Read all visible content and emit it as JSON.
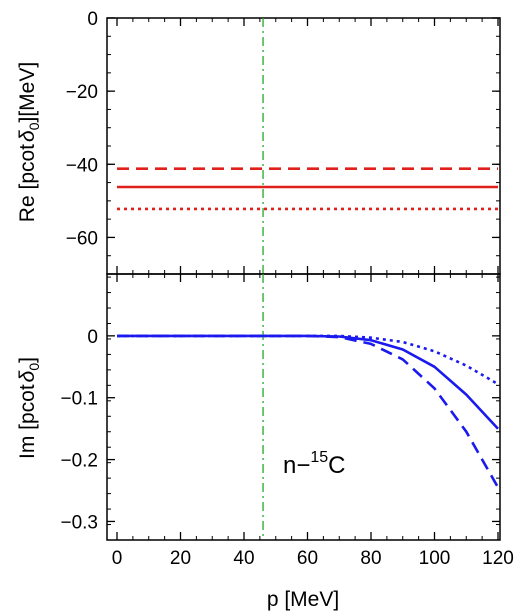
{
  "chart_data": [
    {
      "type": "line",
      "panel": "top",
      "ylabel_parts": [
        "Re [pcot",
        "δ",
        "0",
        "][MeV]"
      ],
      "xlim": [
        0,
        120
      ],
      "ylim": [
        -70,
        0
      ],
      "yticks": [
        0,
        -20,
        -40,
        -60
      ],
      "ytick_labels": [
        "0",
        "−20",
        "−40",
        "−60"
      ],
      "reference_line": {
        "x": 46,
        "color": "#22aa22",
        "style": "dash-dot"
      },
      "series": [
        {
          "style": "dashed",
          "color": "#e0201b",
          "x": [
            0,
            120
          ],
          "y": [
            -41.2,
            -41.2
          ]
        },
        {
          "style": "solid",
          "color": "#e0201b",
          "x": [
            0,
            120
          ],
          "y": [
            -46.2,
            -46.2
          ]
        },
        {
          "style": "dotted",
          "color": "#e0201b",
          "x": [
            0,
            120
          ],
          "y": [
            -52.2,
            -52.2
          ]
        }
      ]
    },
    {
      "type": "line",
      "panel": "bottom",
      "ylabel_parts": [
        "Im [pcot",
        "δ",
        "0",
        "]"
      ],
      "xlabel": "p [MeV]",
      "xlim": [
        0,
        120
      ],
      "ylim": [
        -0.33,
        0.1
      ],
      "xticks": [
        0,
        20,
        40,
        60,
        80,
        100,
        120
      ],
      "xtick_labels": [
        "0",
        "20",
        "40",
        "60",
        "80",
        "100",
        "120"
      ],
      "yticks": [
        0,
        -0.1,
        -0.2,
        -0.3
      ],
      "ytick_labels": [
        "0",
        "−0.1",
        "−0.2",
        "−0.3"
      ],
      "annotation_parts": [
        "n−",
        "15",
        "C"
      ],
      "reference_line": {
        "x": 46,
        "color": "#22aa22",
        "style": "dash-dot"
      },
      "series": [
        {
          "style": "dashed",
          "color": "#1a1aee",
          "x": [
            0,
            60,
            70,
            80,
            90,
            100,
            110,
            120
          ],
          "y": [
            0,
            0,
            -0.002,
            -0.013,
            -0.038,
            -0.085,
            -0.155,
            -0.245
          ]
        },
        {
          "style": "solid",
          "color": "#1a1aee",
          "x": [
            0,
            60,
            70,
            80,
            90,
            100,
            110,
            120
          ],
          "y": [
            0,
            0,
            -0.001,
            -0.007,
            -0.022,
            -0.05,
            -0.095,
            -0.15
          ]
        },
        {
          "style": "dotted",
          "color": "#1a1aee",
          "x": [
            0,
            60,
            70,
            80,
            90,
            100,
            110,
            120
          ],
          "y": [
            0,
            0,
            0,
            -0.003,
            -0.01,
            -0.025,
            -0.048,
            -0.078
          ]
        }
      ]
    }
  ]
}
